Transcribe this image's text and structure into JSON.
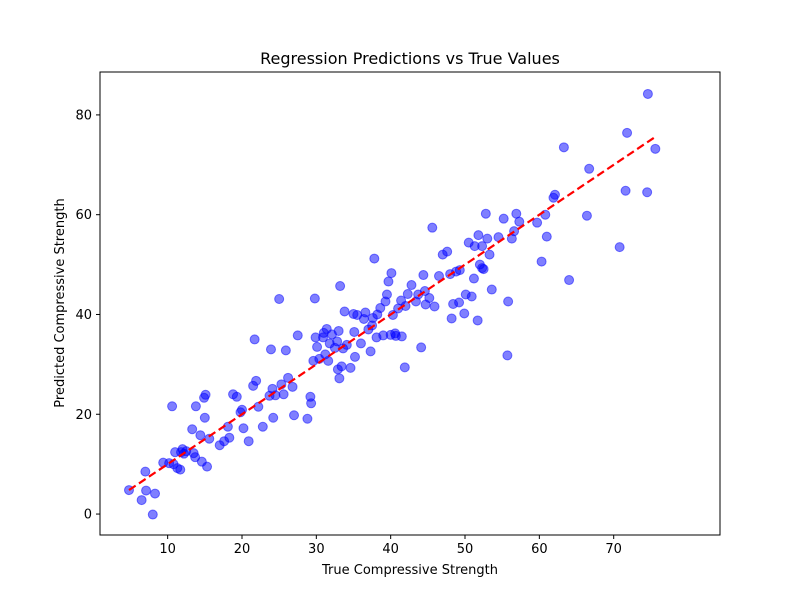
{
  "chart_data": {
    "type": "scatter",
    "title": "Regression Predictions vs True Values",
    "xlabel": "True Compressive Strength",
    "ylabel": "Predicted Compressive Strength",
    "xlim": [
      0.9,
      84.3
    ],
    "ylim": [
      -4.2,
      88.6
    ],
    "xticks": [
      10,
      20,
      30,
      40,
      50,
      60,
      70
    ],
    "yticks": [
      0,
      20,
      40,
      60,
      80
    ],
    "grid": false,
    "colors": {
      "points": "#0000ff",
      "reference_line": "#ff0000"
    },
    "reference_line": {
      "style": "dashed",
      "x": [
        4.8,
        75.4
      ],
      "y": [
        4.8,
        75.4
      ]
    },
    "series": [
      {
        "marker": "circle",
        "points": [
          [
            4.8,
            4.8
          ],
          [
            6.5,
            2.8
          ],
          [
            7.0,
            8.5
          ],
          [
            7.1,
            4.7
          ],
          [
            8.0,
            -0.1
          ],
          [
            8.3,
            4.1
          ],
          [
            9.4,
            10.3
          ],
          [
            10.2,
            10.2
          ],
          [
            10.6,
            21.6
          ],
          [
            10.8,
            10.0
          ],
          [
            11.0,
            12.4
          ],
          [
            11.3,
            9.2
          ],
          [
            11.7,
            8.9
          ],
          [
            11.8,
            12.4
          ],
          [
            12.0,
            13.0
          ],
          [
            12.2,
            12.1
          ],
          [
            12.5,
            12.6
          ],
          [
            13.3,
            17.0
          ],
          [
            13.5,
            12.2
          ],
          [
            13.7,
            11.4
          ],
          [
            13.8,
            21.6
          ],
          [
            14.4,
            15.8
          ],
          [
            14.6,
            10.5
          ],
          [
            14.9,
            23.3
          ],
          [
            15.0,
            19.3
          ],
          [
            15.1,
            23.9
          ],
          [
            15.3,
            9.5
          ],
          [
            15.6,
            15.1
          ],
          [
            17.0,
            13.8
          ],
          [
            17.6,
            14.6
          ],
          [
            18.1,
            17.5
          ],
          [
            18.3,
            15.3
          ],
          [
            18.8,
            24.0
          ],
          [
            19.3,
            23.5
          ],
          [
            19.8,
            20.4
          ],
          [
            20.0,
            20.9
          ],
          [
            20.2,
            17.2
          ],
          [
            20.9,
            14.6
          ],
          [
            21.5,
            25.7
          ],
          [
            21.7,
            35.0
          ],
          [
            21.9,
            26.7
          ],
          [
            22.2,
            21.5
          ],
          [
            22.8,
            17.5
          ],
          [
            23.7,
            23.7
          ],
          [
            23.9,
            33.0
          ],
          [
            24.1,
            25.1
          ],
          [
            24.2,
            19.3
          ],
          [
            24.5,
            23.8
          ],
          [
            25.0,
            43.1
          ],
          [
            25.3,
            26.0
          ],
          [
            25.6,
            24.0
          ],
          [
            25.9,
            32.8
          ],
          [
            26.2,
            27.3
          ],
          [
            26.8,
            25.5
          ],
          [
            27.0,
            19.8
          ],
          [
            27.5,
            35.8
          ],
          [
            28.8,
            19.1
          ],
          [
            29.2,
            23.5
          ],
          [
            29.3,
            22.2
          ],
          [
            29.6,
            30.7
          ],
          [
            29.8,
            43.2
          ],
          [
            29.9,
            35.4
          ],
          [
            30.1,
            33.5
          ],
          [
            30.4,
            31.1
          ],
          [
            30.9,
            35.4
          ],
          [
            31.0,
            36.3
          ],
          [
            31.2,
            32.0
          ],
          [
            31.4,
            37.1
          ],
          [
            31.6,
            30.7
          ],
          [
            31.8,
            34.2
          ],
          [
            32.1,
            36.0
          ],
          [
            32.5,
            33.3
          ],
          [
            32.8,
            34.6
          ],
          [
            32.9,
            29.0
          ],
          [
            33.0,
            36.7
          ],
          [
            33.1,
            27.2
          ],
          [
            33.2,
            45.7
          ],
          [
            33.4,
            29.6
          ],
          [
            33.6,
            33.2
          ],
          [
            33.8,
            40.6
          ],
          [
            34.1,
            33.9
          ],
          [
            34.6,
            29.3
          ],
          [
            35.0,
            40.1
          ],
          [
            35.1,
            36.5
          ],
          [
            35.2,
            31.5
          ],
          [
            35.5,
            39.9
          ],
          [
            36.0,
            34.2
          ],
          [
            36.4,
            39.1
          ],
          [
            36.6,
            40.4
          ],
          [
            37.0,
            37.0
          ],
          [
            37.3,
            32.6
          ],
          [
            37.5,
            37.8
          ],
          [
            37.6,
            39.3
          ],
          [
            37.8,
            51.2
          ],
          [
            38.1,
            35.4
          ],
          [
            38.2,
            40.0
          ],
          [
            38.6,
            41.3
          ],
          [
            39.0,
            35.8
          ],
          [
            39.3,
            42.6
          ],
          [
            39.5,
            44.0
          ],
          [
            39.7,
            46.6
          ],
          [
            40.0,
            35.9
          ],
          [
            40.1,
            48.3
          ],
          [
            40.3,
            39.9
          ],
          [
            40.6,
            36.2
          ],
          [
            40.7,
            35.7
          ],
          [
            41.0,
            41.2
          ],
          [
            41.4,
            42.8
          ],
          [
            41.5,
            35.6
          ],
          [
            41.9,
            29.4
          ],
          [
            42.0,
            41.7
          ],
          [
            42.3,
            44.1
          ],
          [
            42.8,
            45.9
          ],
          [
            43.4,
            42.6
          ],
          [
            43.7,
            44.0
          ],
          [
            44.1,
            33.4
          ],
          [
            44.4,
            47.9
          ],
          [
            44.6,
            44.7
          ],
          [
            44.7,
            42.0
          ],
          [
            45.2,
            43.3
          ],
          [
            45.6,
            57.4
          ],
          [
            45.9,
            41.6
          ],
          [
            46.5,
            47.7
          ],
          [
            47.0,
            52.0
          ],
          [
            47.6,
            52.6
          ],
          [
            48.0,
            48.1
          ],
          [
            48.2,
            39.2
          ],
          [
            48.4,
            42.1
          ],
          [
            48.8,
            48.6
          ],
          [
            49.2,
            42.4
          ],
          [
            49.3,
            48.9
          ],
          [
            49.9,
            40.2
          ],
          [
            50.1,
            44.0
          ],
          [
            50.5,
            54.4
          ],
          [
            50.9,
            43.6
          ],
          [
            51.2,
            47.2
          ],
          [
            51.3,
            53.7
          ],
          [
            51.7,
            38.8
          ],
          [
            51.8,
            55.9
          ],
          [
            52.0,
            50.0
          ],
          [
            52.3,
            49.3
          ],
          [
            52.3,
            53.7
          ],
          [
            52.5,
            49.1
          ],
          [
            52.8,
            60.2
          ],
          [
            53.0,
            55.2
          ],
          [
            53.3,
            52.0
          ],
          [
            53.6,
            45.0
          ],
          [
            54.5,
            55.5
          ],
          [
            55.2,
            59.2
          ],
          [
            55.7,
            31.8
          ],
          [
            55.8,
            42.6
          ],
          [
            56.3,
            55.2
          ],
          [
            56.6,
            56.7
          ],
          [
            56.9,
            60.2
          ],
          [
            57.3,
            58.6
          ],
          [
            59.7,
            58.4
          ],
          [
            60.3,
            50.6
          ],
          [
            60.8,
            60.0
          ],
          [
            61.0,
            55.6
          ],
          [
            61.9,
            63.4
          ],
          [
            62.1,
            64.0
          ],
          [
            63.3,
            73.5
          ],
          [
            64.0,
            46.9
          ],
          [
            66.4,
            59.8
          ],
          [
            66.7,
            69.2
          ],
          [
            70.8,
            53.5
          ],
          [
            71.6,
            64.8
          ],
          [
            71.8,
            76.4
          ],
          [
            74.5,
            64.5
          ],
          [
            74.6,
            84.2
          ],
          [
            75.6,
            73.2
          ]
        ]
      }
    ]
  }
}
